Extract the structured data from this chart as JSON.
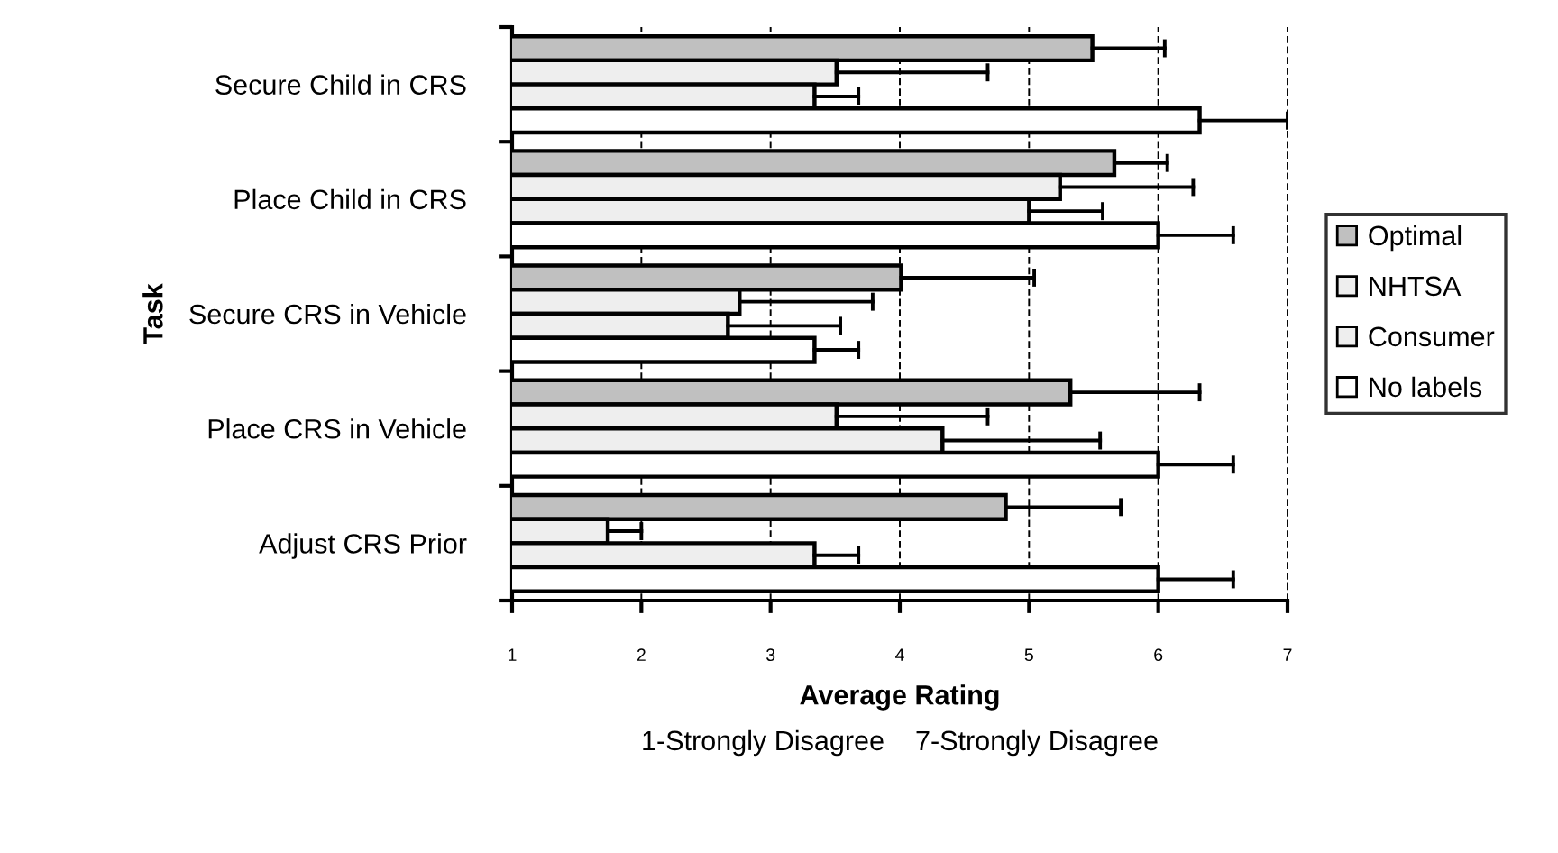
{
  "chart_data": {
    "type": "bar",
    "orientation": "horizontal",
    "xlabel": "Average Rating",
    "ylabel": "Task",
    "annotations": [
      "1-Strongly Disagree    7-Strongly Disagree"
    ],
    "categories": [
      "Secure Child in CRS",
      "Place Child in CRS",
      "Secure CRS in Vehicle",
      "Place CRS in Vehicle",
      "Adjust CRS Prior"
    ],
    "series": [
      {
        "name": "Optimal",
        "color": "#c0c0c0",
        "values": [
          5.49,
          5.66,
          4.01,
          5.32,
          4.82
        ],
        "errors": [
          [
            5.49,
            6.05
          ],
          [
            5.66,
            6.07
          ],
          [
            4.01,
            5.04
          ],
          [
            5.32,
            6.32
          ],
          [
            4.82,
            5.71
          ]
        ]
      },
      {
        "name": "NHTSA",
        "color": "#eeeeee",
        "values": [
          3.51,
          5.24,
          2.76,
          3.51,
          1.74
        ],
        "errors": [
          [
            3.51,
            4.68
          ],
          [
            5.24,
            6.27
          ],
          [
            2.76,
            3.79
          ],
          [
            3.51,
            4.68
          ],
          [
            1.74,
            2.0
          ]
        ]
      },
      {
        "name": "Consumer",
        "color": "#eeeeee",
        "values": [
          3.34,
          5.0,
          2.67,
          4.33,
          3.34
        ],
        "errors": [
          [
            3.34,
            3.68
          ],
          [
            5.0,
            5.57
          ],
          [
            2.67,
            3.54
          ],
          [
            4.33,
            5.55
          ],
          [
            3.34,
            3.68
          ]
        ]
      },
      {
        "name": "No labels",
        "color": "#ffffff",
        "values": [
          6.32,
          6.0,
          3.34,
          6.0,
          6.0
        ],
        "errors": [
          [
            6.32,
            7.0
          ],
          [
            6.0,
            6.58
          ],
          [
            3.34,
            3.68
          ],
          [
            6.0,
            6.58
          ],
          [
            6.0,
            6.58
          ]
        ]
      }
    ],
    "xlim": [
      1,
      7
    ],
    "xticks": [
      1,
      2,
      3,
      4,
      5,
      6,
      7
    ],
    "grid": "x",
    "legend": "right"
  }
}
